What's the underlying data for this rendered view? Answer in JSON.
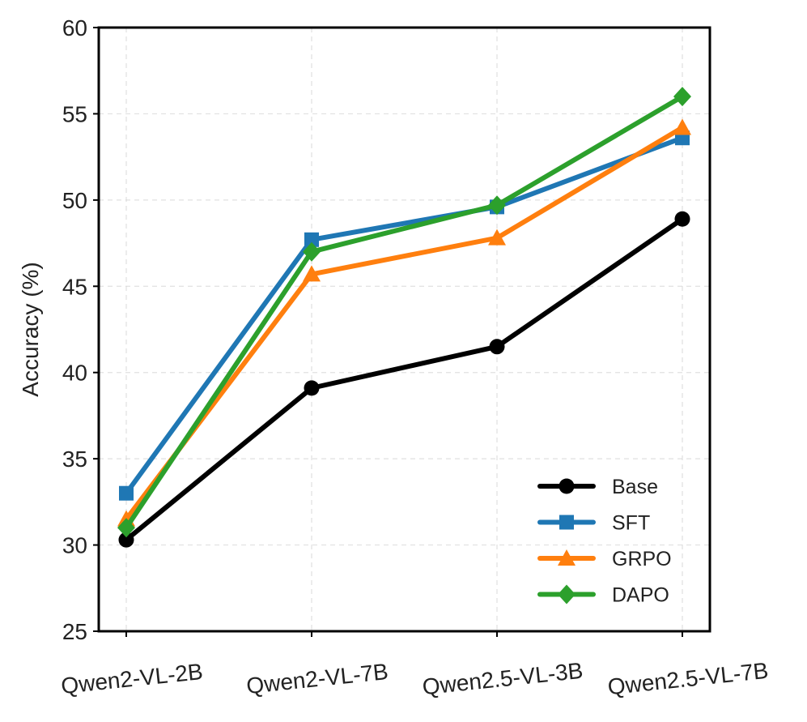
{
  "chart_data": {
    "type": "line",
    "title": "",
    "xlabel": "",
    "ylabel": "Accuracy (%)",
    "ylim": [
      25,
      60
    ],
    "yticks": [
      "25",
      "30",
      "35",
      "40",
      "45",
      "50",
      "55",
      "60"
    ],
    "grid": true,
    "legend_position": "bottom-right",
    "categories": [
      "Qwen2-VL-2B",
      "Qwen2-VL-7B",
      "Qwen2.5-VL-3B",
      "Qwen2.5-VL-7B"
    ],
    "series": [
      {
        "name": "Base",
        "color": "#000000",
        "marker": "circle",
        "values": [
          30.3,
          39.1,
          41.5,
          48.9
        ]
      },
      {
        "name": "SFT",
        "color": "#1f77b4",
        "marker": "square",
        "values": [
          33.0,
          47.7,
          49.6,
          53.6
        ]
      },
      {
        "name": "GRPO",
        "color": "#ff7f0e",
        "marker": "triangle",
        "values": [
          31.5,
          45.7,
          47.8,
          54.2
        ]
      },
      {
        "name": "DAPO",
        "color": "#2ca02c",
        "marker": "diamond",
        "values": [
          31.0,
          47.0,
          49.7,
          56.0
        ]
      }
    ]
  }
}
